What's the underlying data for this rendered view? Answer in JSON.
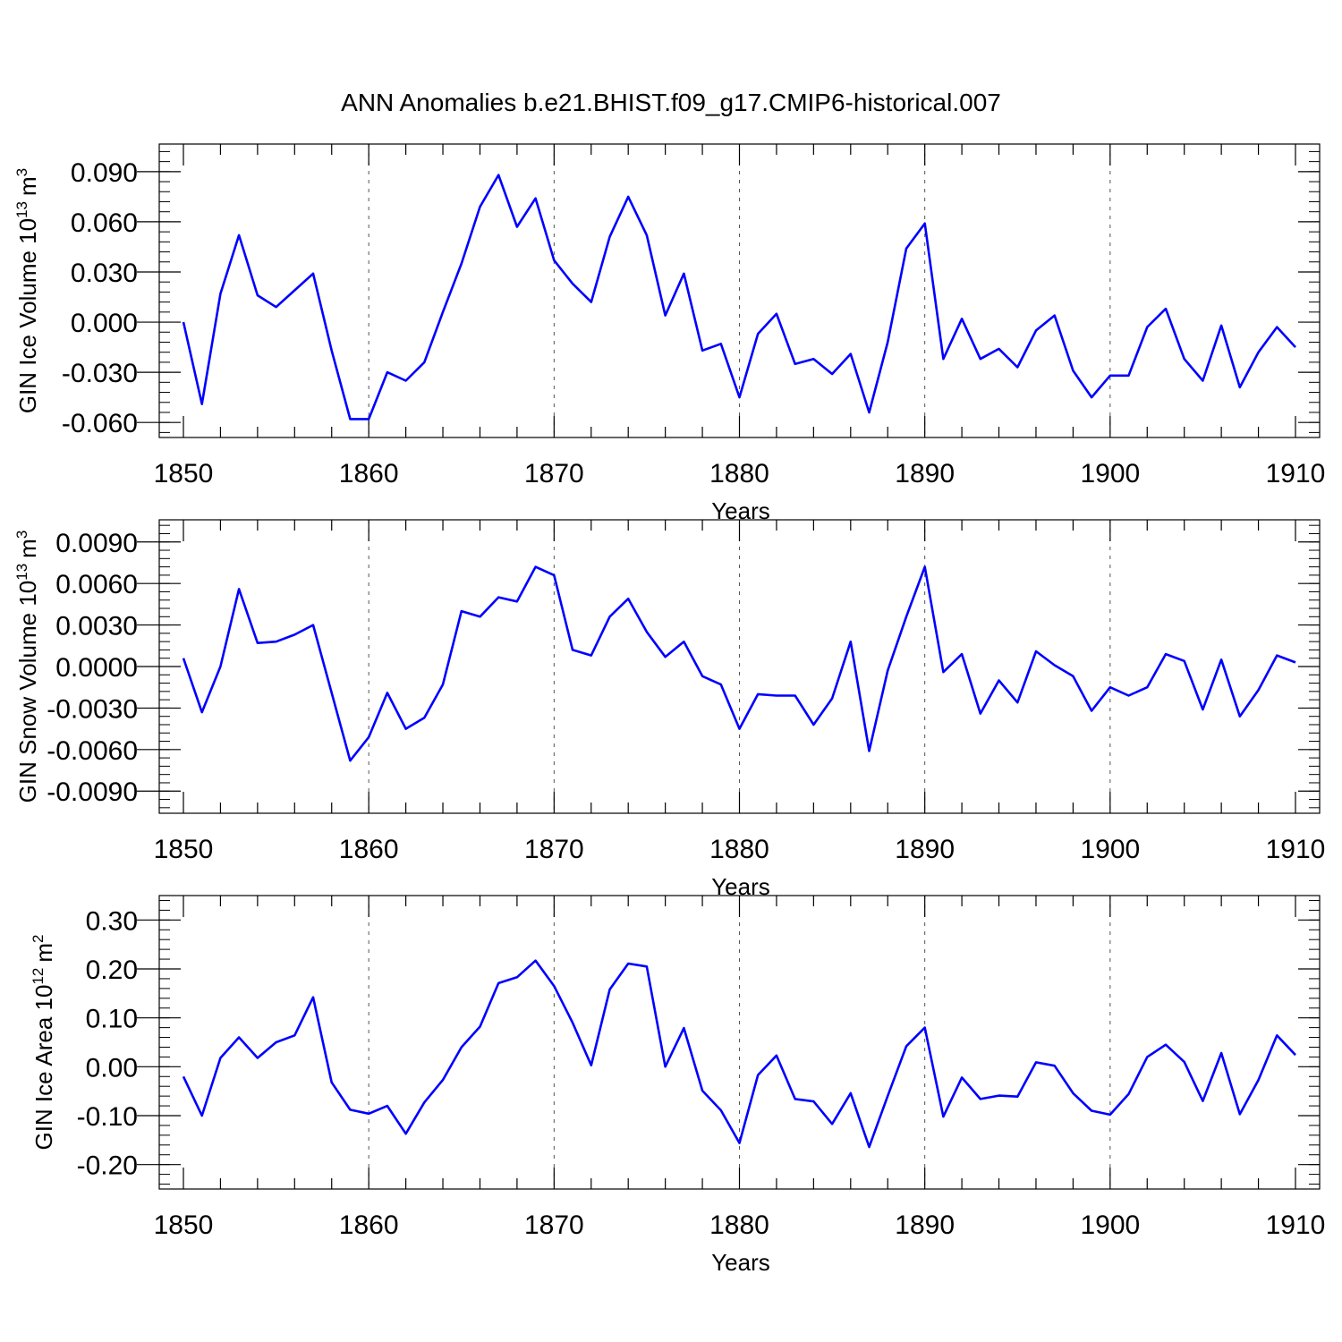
{
  "figure_title": "ANN Anomalies b.e21.BHIST.f09_g17.CMIP6-historical.007",
  "chart_data": [
    {
      "type": "line",
      "ylabel": "GIN Ice Volume 10",
      "ylabel_sup": "13",
      "ylabel_unit": "m",
      "ylabel_unit_sup": "3",
      "xlabel": "Years",
      "xlim": [
        1850,
        1910
      ],
      "ylim": [
        -0.069,
        0.1065
      ],
      "yticks": [
        "0.090",
        "0.060",
        "0.030",
        "0.000",
        "-0.030",
        "-0.060"
      ],
      "ytick_values": [
        0.09,
        0.06,
        0.03,
        0.0,
        -0.03,
        -0.06
      ],
      "xticks": [
        "1850",
        "1860",
        "1870",
        "1880",
        "1890",
        "1900",
        "1910"
      ],
      "line_color": "#0000ff",
      "series": [
        {
          "name": "GIN Ice Volume",
          "x_start": 1850,
          "values": [
            0.0,
            -0.049,
            0.017,
            0.052,
            0.016,
            0.009,
            0.019,
            0.029,
            -0.017,
            -0.058,
            -0.058,
            -0.03,
            -0.035,
            -0.024,
            0.006,
            0.035,
            0.069,
            0.088,
            0.057,
            0.074,
            0.037,
            0.023,
            0.012,
            0.051,
            0.075,
            0.052,
            0.004,
            0.029,
            -0.017,
            -0.013,
            -0.045,
            -0.007,
            0.005,
            -0.025,
            -0.022,
            -0.031,
            -0.019,
            -0.054,
            -0.012,
            0.044,
            0.059,
            -0.022,
            0.002,
            -0.022,
            -0.016,
            -0.027,
            -0.005,
            0.004,
            -0.029,
            -0.045,
            -0.032,
            -0.032,
            -0.003,
            0.008,
            -0.022,
            -0.035,
            -0.002,
            -0.039,
            -0.018,
            -0.003,
            -0.015
          ]
        }
      ]
    },
    {
      "type": "line",
      "ylabel": "GIN Snow Volume 10",
      "ylabel_sup": "13",
      "ylabel_unit": "m",
      "ylabel_unit_sup": "3",
      "xlabel": "Years",
      "xlim": [
        1850,
        1910
      ],
      "ylim": [
        -0.0106,
        0.0106
      ],
      "yticks": [
        "0.0090",
        "0.0060",
        "0.0030",
        "0.0000",
        "-0.0030",
        "-0.0060",
        "-0.0090"
      ],
      "ytick_values": [
        0.009,
        0.006,
        0.003,
        0.0,
        -0.003,
        -0.006,
        -0.009
      ],
      "xticks": [
        "1850",
        "1860",
        "1870",
        "1880",
        "1890",
        "1900",
        "1910"
      ],
      "line_color": "#0000ff",
      "series": [
        {
          "name": "GIN Snow Volume",
          "x_start": 1850,
          "values": [
            0.0006,
            -0.0033,
            0.0,
            0.0056,
            0.0017,
            0.0018,
            0.0023,
            0.003,
            -0.0019,
            -0.0068,
            -0.0051,
            -0.0019,
            -0.0045,
            -0.0037,
            -0.0013,
            0.004,
            0.0036,
            0.005,
            0.0047,
            0.0072,
            0.0066,
            0.0012,
            0.0008,
            0.0036,
            0.0049,
            0.0025,
            0.0007,
            0.0018,
            -0.0007,
            -0.0013,
            -0.0045,
            -0.002,
            -0.0021,
            -0.0021,
            -0.0042,
            -0.0023,
            0.0018,
            -0.0061,
            -0.0003,
            0.0036,
            0.0072,
            -0.0004,
            0.0009,
            -0.0034,
            -0.001,
            -0.0026,
            0.0011,
            0.0001,
            -0.0007,
            -0.0032,
            -0.0015,
            -0.0021,
            -0.0015,
            0.0009,
            0.0004,
            -0.0031,
            0.0005,
            -0.0036,
            -0.0017,
            0.0008,
            0.0003
          ]
        }
      ]
    },
    {
      "type": "line",
      "ylabel": "GIN Ice Area 10",
      "ylabel_sup": "12",
      "ylabel_unit": "m",
      "ylabel_unit_sup": "2",
      "xlabel": "Years",
      "xlim": [
        1850,
        1910
      ],
      "ylim": [
        -0.25,
        0.35
      ],
      "yticks": [
        "0.30",
        "0.20",
        "0.10",
        "0.00",
        "-0.10",
        "-0.20"
      ],
      "ytick_values": [
        0.3,
        0.2,
        0.1,
        0.0,
        -0.1,
        -0.2
      ],
      "xticks": [
        "1850",
        "1860",
        "1870",
        "1880",
        "1890",
        "1900",
        "1910"
      ],
      "line_color": "#0000ff",
      "series": [
        {
          "name": "GIN Ice Area",
          "x_start": 1850,
          "values": [
            -0.02,
            -0.1,
            0.018,
            0.06,
            0.018,
            0.05,
            0.064,
            0.142,
            -0.032,
            -0.088,
            -0.096,
            -0.08,
            -0.137,
            -0.073,
            -0.027,
            0.04,
            0.082,
            0.171,
            0.183,
            0.217,
            0.165,
            0.09,
            0.003,
            0.158,
            0.211,
            0.205,
            0.0,
            0.079,
            -0.049,
            -0.089,
            -0.156,
            -0.017,
            0.023,
            -0.066,
            -0.071,
            -0.117,
            -0.054,
            -0.164,
            -0.06,
            0.042,
            0.08,
            -0.102,
            -0.022,
            -0.066,
            -0.059,
            -0.061,
            0.009,
            0.002,
            -0.054,
            -0.09,
            -0.098,
            -0.056,
            0.02,
            0.045,
            0.01,
            -0.07,
            0.028,
            -0.097,
            -0.027,
            0.064,
            0.024
          ]
        }
      ]
    }
  ]
}
